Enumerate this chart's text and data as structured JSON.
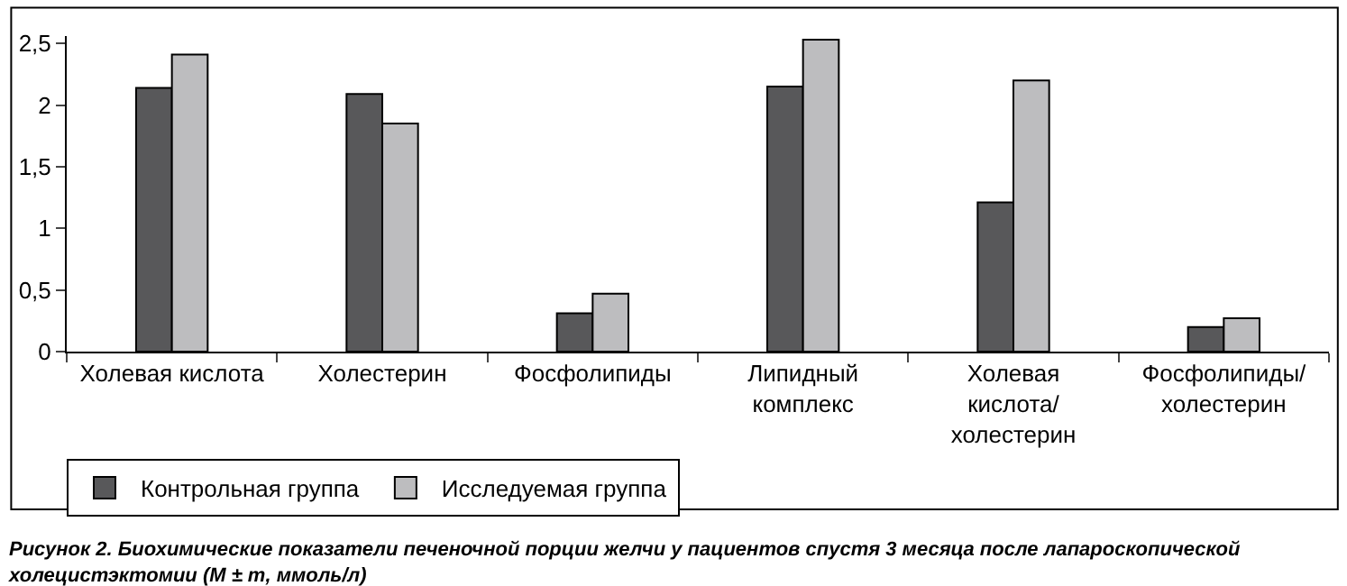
{
  "chart_data": {
    "type": "bar",
    "categories": [
      "Холевая кислота",
      "Холестерин",
      "Фосфолипиды",
      "Липидный\nкомплекс",
      "Холевая\nкислота/\nхолестерин",
      "Фосфолипиды/\nхолестерин"
    ],
    "series": [
      {
        "name": "Контрольная группа",
        "color": "#58585a",
        "values": [
          2.14,
          2.09,
          0.31,
          2.15,
          1.21,
          0.2
        ]
      },
      {
        "name": "Исследуемая группа",
        "color": "#bdbdbf",
        "values": [
          2.41,
          1.85,
          0.47,
          2.53,
          2.2,
          0.27
        ]
      }
    ],
    "ylim": [
      0,
      2.56
    ],
    "yticks": [
      0,
      {
        "value": 0.5,
        "label": "0,5"
      },
      1,
      {
        "value": 1.5,
        "label": "1,5"
      },
      2,
      {
        "value": 2.5,
        "label": "2,5"
      }
    ],
    "legend": "bottom left",
    "annotations": [
      "Рисунок 2. Биохимические показатели печеночной порции желчи у пациентов спустя 3 месяца после лапароскопической\nхолецистэктомии (M ± m, ммоль/л)"
    ]
  }
}
